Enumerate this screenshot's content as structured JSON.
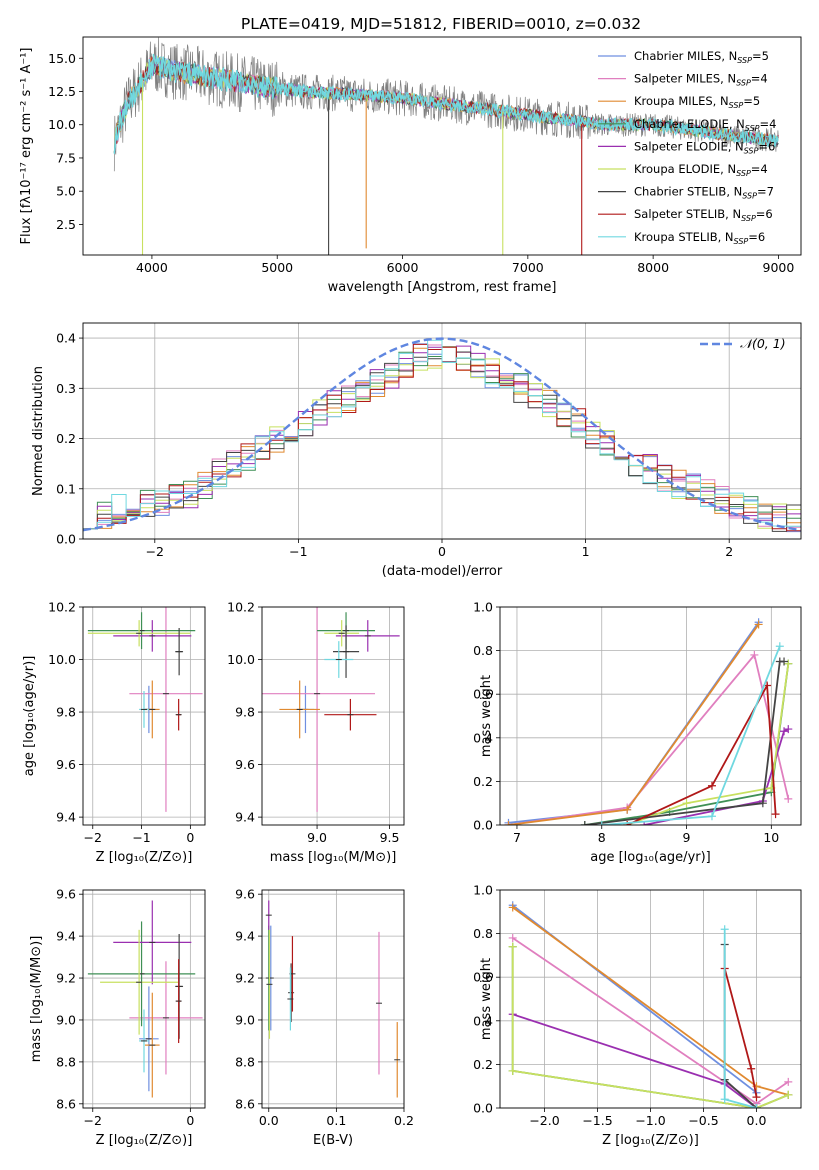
{
  "title": "PLATE=0419, MJD=51812, FIBERID=0010, z=0.032",
  "colors": {
    "chabrier_miles": "#6f8fe0",
    "salpeter_miles": "#e07fbf",
    "kroupa_miles": "#e08a30",
    "chabrier_elodie": "#3f8f55",
    "salpeter_elodie": "#9a2fb0",
    "kroupa_elodie": "#c8e060",
    "chabrier_stelib": "#444444",
    "salpeter_stelib": "#b01818",
    "kroupa_stelib": "#70d8e0",
    "data": "#7f7f7f",
    "gauss": "#5f86e0"
  },
  "legend_labels": [
    {
      "pre": "Chabrier MILES, N",
      "sub": "SSP",
      "post": "=5"
    },
    {
      "pre": "Salpeter MILES, N",
      "sub": "SSP",
      "post": "=4"
    },
    {
      "pre": "Kroupa MILES, N",
      "sub": "SSP",
      "post": "=5"
    },
    {
      "pre": "Chabrier ELODIE, N",
      "sub": "SSP",
      "post": "=4"
    },
    {
      "pre": "Salpeter ELODIE, N",
      "sub": "SSP",
      "post": "=6"
    },
    {
      "pre": "Kroupa ELODIE, N",
      "sub": "SSP",
      "post": "=4"
    },
    {
      "pre": "Chabrier STELIB, N",
      "sub": "SSP",
      "post": "=7"
    },
    {
      "pre": "Salpeter STELIB, N",
      "sub": "SSP",
      "post": "=6"
    },
    {
      "pre": "Kroupa STELIB, N",
      "sub": "SSP",
      "post": "=6"
    }
  ],
  "chart_data": [
    {
      "id": "spectrum",
      "type": "line",
      "xlabel": "wavelength [Angstrom, rest frame]",
      "ylabel": "Flux [fλ10⁻¹⁷ erg cm⁻² s⁻¹ A⁻¹]",
      "xlim": [
        3450,
        9180
      ],
      "ylim": [
        0.2,
        16.6
      ],
      "xticks": [
        4000,
        5000,
        6000,
        7000,
        8000,
        9000
      ],
      "yticks": [
        2.5,
        5.0,
        7.5,
        10.0,
        12.5,
        15.0
      ],
      "legend_position": "top-right",
      "continuum_nodes": {
        "x": [
          3700,
          3800,
          4000,
          4200,
          4500,
          4800,
          5200,
          5600,
          6000,
          6400,
          6800,
          7200,
          7400,
          7600,
          8000,
          8400,
          8600,
          8800,
          9000
        ],
        "y": [
          8.7,
          11.5,
          14.5,
          14.0,
          13.5,
          13.0,
          12.5,
          12.3,
          12.0,
          11.5,
          11.0,
          10.5,
          10.3,
          10.0,
          10.0,
          9.5,
          9.2,
          9.0,
          8.8
        ]
      },
      "dips": [
        {
          "x": 5410,
          "y": 0.2
        },
        {
          "x": 5710,
          "y": 0.7
        },
        {
          "x": 3925,
          "y": 0.2
        },
        {
          "x": 6800,
          "y": 0.2
        },
        {
          "x": 7430,
          "y": 0.2
        }
      ]
    },
    {
      "id": "residuals",
      "type": "histogram",
      "xlabel": "(data-model)/error",
      "ylabel": "Normed distribution",
      "xlim": [
        -2.5,
        2.5
      ],
      "ylim": [
        0,
        0.43
      ],
      "xticks": [
        -2,
        -1,
        0,
        1,
        2
      ],
      "yticks": [
        0.0,
        0.1,
        0.2,
        0.3,
        0.4
      ],
      "grid": true,
      "legend": {
        "label": "𝒩(0, 1)",
        "position": "top-right"
      },
      "bins": 50,
      "base_values": [
        0.05,
        0.05,
        0.06,
        0.07,
        0.07,
        0.07,
        0.08,
        0.09,
        0.11,
        0.13,
        0.15,
        0.16,
        0.18,
        0.2,
        0.21,
        0.23,
        0.25,
        0.27,
        0.28,
        0.3,
        0.31,
        0.33,
        0.35,
        0.36,
        0.37,
        0.37,
        0.36,
        0.35,
        0.33,
        0.31,
        0.3,
        0.28,
        0.27,
        0.25,
        0.23,
        0.21,
        0.19,
        0.17,
        0.15,
        0.14,
        0.12,
        0.11,
        0.1,
        0.09,
        0.08,
        0.07,
        0.06,
        0.05,
        0.04,
        0.04
      ]
    },
    {
      "id": "age_vs_Z",
      "type": "errorbar",
      "xlabel": "Z [log₁₀(Z/Z⊙)]",
      "ylabel": "age  [log₁₀(age/yr)]",
      "xlim": [
        -2.2,
        0.3
      ],
      "ylim": [
        9.37,
        10.2
      ],
      "xticks": [
        -2,
        -1,
        0
      ],
      "yticks": [
        9.4,
        9.6,
        9.8,
        10.0,
        10.2
      ],
      "points": [
        {
          "s": "chabrier_miles",
          "x": -0.85,
          "y": 9.81,
          "xe": 0.1,
          "ye": 0.09
        },
        {
          "s": "salpeter_miles",
          "x": -0.5,
          "y": 9.87,
          "xe": 0.75,
          "ye": 0.45
        },
        {
          "s": "kroupa_miles",
          "x": -0.78,
          "y": 9.81,
          "xe": 0.15,
          "ye": 0.11
        },
        {
          "s": "chabrier_elodie",
          "x": -1.0,
          "y": 10.11,
          "xe": 1.1,
          "ye": 0.07
        },
        {
          "s": "salpeter_elodie",
          "x": -0.78,
          "y": 10.09,
          "xe": 0.8,
          "ye": 0.06
        },
        {
          "s": "kroupa_elodie",
          "x": -1.05,
          "y": 10.1,
          "xe": 1.05,
          "ye": 0.05
        },
        {
          "s": "chabrier_stelib",
          "x": -0.23,
          "y": 10.03,
          "xe": 0.08,
          "ye": 0.09
        },
        {
          "s": "salpeter_stelib",
          "x": -0.24,
          "y": 9.79,
          "xe": 0.05,
          "ye": 0.06
        },
        {
          "s": "kroupa_stelib",
          "x": -0.95,
          "y": 9.81,
          "xe": 0.1,
          "ye": 0.07
        }
      ]
    },
    {
      "id": "age_vs_mass",
      "type": "errorbar",
      "xlabel": "mass [log₁₀(M/M⊙)]",
      "ylabel": "",
      "xlim": [
        8.62,
        9.6
      ],
      "ylim": [
        9.37,
        10.2
      ],
      "xticks": [
        9.0,
        9.5
      ],
      "yticks": [
        9.4,
        9.6,
        9.8,
        10.0,
        10.2
      ],
      "points": [
        {
          "s": "chabrier_miles",
          "x": 8.92,
          "y": 9.81,
          "xe": 0.06,
          "ye": 0.09
        },
        {
          "s": "salpeter_miles",
          "x": 9.0,
          "y": 9.87,
          "xe": 0.4,
          "ye": 0.45
        },
        {
          "s": "kroupa_miles",
          "x": 8.88,
          "y": 9.81,
          "xe": 0.14,
          "ye": 0.11
        },
        {
          "s": "chabrier_elodie",
          "x": 9.2,
          "y": 10.11,
          "xe": 0.2,
          "ye": 0.07
        },
        {
          "s": "salpeter_elodie",
          "x": 9.35,
          "y": 10.09,
          "xe": 0.22,
          "ye": 0.06
        },
        {
          "s": "kroupa_elodie",
          "x": 9.17,
          "y": 10.1,
          "xe": 0.12,
          "ye": 0.05
        },
        {
          "s": "chabrier_stelib",
          "x": 9.2,
          "y": 10.03,
          "xe": 0.09,
          "ye": 0.1
        },
        {
          "s": "salpeter_stelib",
          "x": 9.23,
          "y": 9.79,
          "xe": 0.18,
          "ye": 0.06
        },
        {
          "s": "kroupa_stelib",
          "x": 9.15,
          "y": 10.0,
          "xe": 0.1,
          "ye": 0.07
        }
      ]
    },
    {
      "id": "weight_vs_age",
      "type": "line",
      "xlabel": "age  [log₁₀(age/yr)]",
      "ylabel": "mass weight",
      "xlim": [
        6.8,
        10.35
      ],
      "ylim": [
        0,
        1.0
      ],
      "xticks": [
        7,
        8,
        9,
        10
      ],
      "yticks": [
        0.0,
        0.2,
        0.4,
        0.6,
        0.8,
        1.0
      ],
      "series": [
        {
          "s": "chabrier_miles",
          "x": [
            6.9,
            8.3,
            9.85
          ],
          "y": [
            0.01,
            0.07,
            0.93
          ]
        },
        {
          "s": "salpeter_miles",
          "x": [
            6.9,
            8.3,
            9.8,
            10.2
          ],
          "y": [
            0.0,
            0.08,
            0.78,
            0.12
          ]
        },
        {
          "s": "kroupa_miles",
          "x": [
            6.9,
            8.3,
            9.85
          ],
          "y": [
            0.0,
            0.07,
            0.92
          ]
        },
        {
          "s": "chabrier_elodie",
          "x": [
            7.8,
            8.8,
            10.0,
            10.2
          ],
          "y": [
            0.0,
            0.06,
            0.15,
            0.74
          ]
        },
        {
          "s": "salpeter_elodie",
          "x": [
            8.5,
            9.9,
            10.15,
            10.2
          ],
          "y": [
            0.0,
            0.11,
            0.43,
            0.44
          ]
        },
        {
          "s": "kroupa_elodie",
          "x": [
            8.3,
            9.0,
            10.0,
            10.2
          ],
          "y": [
            0.0,
            0.1,
            0.17,
            0.74
          ]
        },
        {
          "s": "chabrier_stelib",
          "x": [
            7.8,
            9.9,
            10.1,
            10.15
          ],
          "y": [
            0.0,
            0.1,
            0.75,
            0.75
          ]
        },
        {
          "s": "salpeter_stelib",
          "x": [
            8.3,
            9.3,
            9.95,
            10.05
          ],
          "y": [
            0.0,
            0.18,
            0.64,
            0.05
          ]
        },
        {
          "s": "kroupa_stelib",
          "x": [
            8.0,
            9.3,
            10.1
          ],
          "y": [
            0.0,
            0.04,
            0.82
          ]
        }
      ]
    },
    {
      "id": "mass_vs_Z",
      "type": "errorbar",
      "xlabel": "Z [log₁₀(Z/Z⊙)]",
      "ylabel": "mass [log₁₀(M/M⊙)]",
      "xlim": [
        -2.2,
        0.3
      ],
      "ylim": [
        8.58,
        9.62
      ],
      "xticks": [
        -2,
        0
      ],
      "yticks": [
        8.6,
        8.8,
        9.0,
        9.2,
        9.4,
        9.6
      ],
      "points": [
        {
          "s": "chabrier_miles",
          "x": -0.85,
          "y": 8.91,
          "xe": 0.2,
          "ye": 0.25
        },
        {
          "s": "salpeter_miles",
          "x": -0.5,
          "y": 9.01,
          "xe": 0.75,
          "ye": 0.27
        },
        {
          "s": "kroupa_miles",
          "x": -0.78,
          "y": 8.88,
          "xe": 0.15,
          "ye": 0.25
        },
        {
          "s": "chabrier_elodie",
          "x": -1.0,
          "y": 9.22,
          "xe": 1.1,
          "ye": 0.25
        },
        {
          "s": "salpeter_elodie",
          "x": -0.78,
          "y": 9.37,
          "xe": 0.8,
          "ye": 0.2
        },
        {
          "s": "kroupa_elodie",
          "x": -1.05,
          "y": 9.18,
          "xe": 0.8,
          "ye": 0.25
        },
        {
          "s": "chabrier_stelib",
          "x": -0.23,
          "y": 9.16,
          "xe": 0.08,
          "ye": 0.25
        },
        {
          "s": "salpeter_stelib",
          "x": -0.24,
          "y": 9.09,
          "xe": 0.05,
          "ye": 0.2
        },
        {
          "s": "kroupa_stelib",
          "x": -0.95,
          "y": 8.9,
          "xe": 0.1,
          "ye": 0.15
        }
      ]
    },
    {
      "id": "mass_vs_ebv",
      "type": "errorbar",
      "xlabel": "E(B-V)",
      "ylabel": "",
      "xlim": [
        -0.01,
        0.2
      ],
      "ylim": [
        8.58,
        9.62
      ],
      "xticks": [
        0.0,
        0.1,
        0.2
      ],
      "yticks": [
        8.6,
        8.8,
        9.0,
        9.2,
        9.4,
        9.6
      ],
      "points": [
        {
          "s": "chabrier_miles",
          "x": 0.003,
          "y": 9.2,
          "xe": 0,
          "ye": 0.25
        },
        {
          "s": "salpeter_miles",
          "x": 0.163,
          "y": 9.08,
          "xe": 0,
          "ye": 0.34
        },
        {
          "s": "kroupa_miles",
          "x": 0.19,
          "y": 8.81,
          "xe": 0,
          "ye": 0.18
        },
        {
          "s": "chabrier_elodie",
          "x": 0.0,
          "y": 9.2,
          "xe": 0,
          "ye": 0.25
        },
        {
          "s": "salpeter_elodie",
          "x": 0.0,
          "y": 9.5,
          "xe": 0,
          "ye": 0.07
        },
        {
          "s": "kroupa_elodie",
          "x": 0.001,
          "y": 9.17,
          "xe": 0,
          "ye": 0.26
        },
        {
          "s": "chabrier_stelib",
          "x": 0.033,
          "y": 9.13,
          "xe": 0,
          "ye": 0.14
        },
        {
          "s": "salpeter_stelib",
          "x": 0.035,
          "y": 9.22,
          "xe": 0,
          "ye": 0.18
        },
        {
          "s": "kroupa_stelib",
          "x": 0.032,
          "y": 9.1,
          "xe": 0,
          "ye": 0.15
        }
      ]
    },
    {
      "id": "weight_vs_Z",
      "type": "line",
      "xlabel": "Z [log₁₀(Z/Z⊙)]",
      "ylabel": "mass weight",
      "xlim": [
        -2.42,
        0.42
      ],
      "ylim": [
        0,
        1.0
      ],
      "xticks": [
        -2.0,
        -1.5,
        -1.0,
        -0.5,
        0.0
      ],
      "yticks": [
        0.0,
        0.2,
        0.4,
        0.6,
        0.8,
        1.0
      ],
      "series": [
        {
          "s": "chabrier_miles",
          "x": [
            -2.3,
            0.0
          ],
          "y": [
            0.93,
            0.07
          ]
        },
        {
          "s": "salpeter_miles",
          "x": [
            -2.3,
            0.0,
            0.3
          ],
          "y": [
            0.78,
            0.02,
            0.12
          ]
        },
        {
          "s": "kroupa_miles",
          "x": [
            -2.3,
            0.0,
            0.3
          ],
          "y": [
            0.92,
            0.1,
            0.06
          ]
        },
        {
          "s": "chabrier_elodie",
          "x": [
            -2.3,
            -2.3,
            0.0,
            0.3
          ],
          "y": [
            0.74,
            0.17,
            0.0,
            0.06
          ]
        },
        {
          "s": "salpeter_elodie",
          "x": [
            -2.3,
            -0.3,
            0.0
          ],
          "y": [
            0.43,
            0.11,
            0.0
          ]
        },
        {
          "s": "kroupa_elodie",
          "x": [
            -2.3,
            -2.3,
            0.0,
            0.3
          ],
          "y": [
            0.74,
            0.17,
            0.0,
            0.06
          ]
        },
        {
          "s": "chabrier_stelib",
          "x": [
            -0.3,
            -0.3,
            0.0
          ],
          "y": [
            0.75,
            0.13,
            0.0
          ]
        },
        {
          "s": "salpeter_stelib",
          "x": [
            -0.3,
            -0.05,
            0.0
          ],
          "y": [
            0.64,
            0.18,
            0.05
          ]
        },
        {
          "s": "kroupa_stelib",
          "x": [
            -0.3,
            -0.3,
            0.0
          ],
          "y": [
            0.82,
            0.04,
            0.0
          ]
        }
      ]
    }
  ]
}
